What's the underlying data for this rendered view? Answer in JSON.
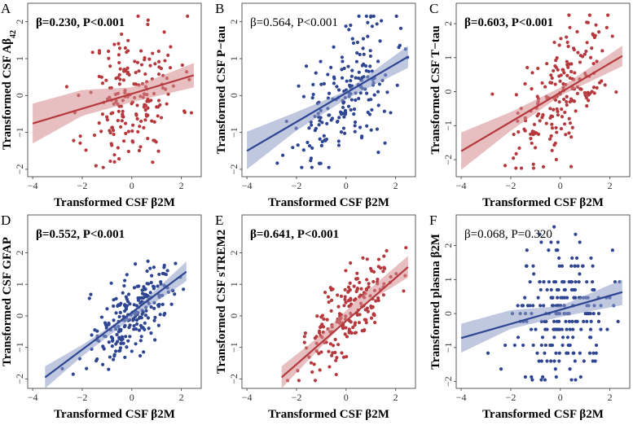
{
  "colors": {
    "red": "#B5393D",
    "blue": "#2E4592",
    "red_band": "#D48A8D",
    "blue_band": "#8D9BC7"
  },
  "chart_data": [
    {
      "panel": "A",
      "type": "scatter",
      "color": "red",
      "xlabel": "Transformed CSF β2M",
      "ylabel": "Transformed CSF Aβ",
      "ylabel_sub": "42",
      "annotation": "β=0.230, P<0.001",
      "annotation_bold": true,
      "xlim": [
        -4.2,
        2.8
      ],
      "ylim": [
        -2.2,
        2.5
      ],
      "xticks": [
        -4,
        -2,
        0,
        2
      ],
      "yticks": [
        -2,
        -1,
        0,
        1,
        2
      ],
      "xtick_labels": [
        "−4",
        "−2",
        "0",
        "2"
      ],
      "ytick_labels": [
        "−2",
        "−1",
        "0",
        "1",
        "2"
      ],
      "fit": {
        "x": [
          -4.0,
          2.5
        ],
        "y": [
          -0.76,
          0.55
        ]
      },
      "ci": {
        "x": [
          -4.0,
          -2.0,
          0.0,
          2.5
        ],
        "lower": [
          -1.3,
          -0.55,
          -0.18,
          0.22
        ],
        "upper": [
          -0.22,
          0.15,
          0.22,
          0.88
        ]
      },
      "point_seed": 11,
      "point_count": 200,
      "point_slope": 0.23,
      "point_sd": 0.95
    },
    {
      "panel": "B",
      "type": "scatter",
      "color": "blue",
      "xlabel": "Transformed CSF β2M",
      "ylabel": "Transformed CSF P−tau",
      "ylabel_sub": "",
      "annotation": "β=0.564, P<0.001",
      "annotation_bold": false,
      "xlim": [
        -4.2,
        2.8
      ],
      "ylim": [
        -2.2,
        2.5
      ],
      "xticks": [
        -4,
        -2,
        0,
        2
      ],
      "yticks": [
        -2,
        -1,
        0,
        1,
        2
      ],
      "xtick_labels": [
        "−4",
        "−2",
        "0",
        "2"
      ],
      "ytick_labels": [
        "−2",
        "−1",
        "0",
        "1",
        "2"
      ],
      "fit": {
        "x": [
          -4.0,
          2.5
        ],
        "y": [
          -1.5,
          1.05
        ]
      },
      "ci": {
        "x": [
          -4.0,
          -2.0,
          0.0,
          2.5
        ],
        "lower": [
          -2.0,
          -0.95,
          -0.1,
          0.75
        ],
        "upper": [
          -0.98,
          -0.45,
          0.12,
          1.35
        ]
      },
      "point_seed": 22,
      "point_count": 200,
      "point_slope": 0.56,
      "point_sd": 0.8
    },
    {
      "panel": "C",
      "type": "scatter",
      "color": "red",
      "xlabel": "Transformed CSF β2M",
      "ylabel": "Transformed CSF T−tau",
      "ylabel_sub": "",
      "annotation": "β=0.603, P<0.001",
      "annotation_bold": true,
      "xlim": [
        -4.2,
        2.8
      ],
      "ylim": [
        -2.5,
        2.6
      ],
      "xticks": [
        -4,
        -2,
        0,
        2
      ],
      "yticks": [
        -2,
        -1,
        0,
        1,
        2
      ],
      "xtick_labels": [
        "−4",
        "−2",
        "0",
        "2"
      ],
      "ytick_labels": [
        "−2",
        "−1",
        "0",
        "1",
        "2"
      ],
      "fit": {
        "x": [
          -4.0,
          2.5
        ],
        "y": [
          -1.75,
          1.05
        ]
      },
      "ci": {
        "x": [
          -4.0,
          -2.0,
          0.0,
          2.5
        ],
        "lower": [
          -2.3,
          -1.15,
          -0.12,
          0.75
        ],
        "upper": [
          -1.2,
          -0.6,
          0.12,
          1.35
        ]
      },
      "point_seed": 33,
      "point_count": 200,
      "point_slope": 0.6,
      "point_sd": 0.8
    },
    {
      "panel": "D",
      "type": "scatter",
      "color": "blue",
      "xlabel": "Transformed CSF β2M",
      "ylabel": "Transformed CSF GFAP",
      "ylabel_sub": "",
      "annotation": "β=0.552, P<0.001",
      "annotation_bold": true,
      "xlim": [
        -4.2,
        2.8
      ],
      "ylim": [
        -2.3,
        3.2
      ],
      "xticks": [
        -4,
        -2,
        0,
        2
      ],
      "yticks": [
        -2,
        -1,
        0,
        1,
        2
      ],
      "xtick_labels": [
        "−4",
        "−2",
        "0",
        "2"
      ],
      "ytick_labels": [
        "−2",
        "−1",
        "0",
        "1",
        "2"
      ],
      "fit": {
        "x": [
          -3.5,
          2.2
        ],
        "y": [
          -1.95,
          1.4
        ]
      },
      "ci": {
        "x": [
          -3.5,
          -2.0,
          0.0,
          2.2
        ],
        "lower": [
          -2.3,
          -1.28,
          -0.08,
          1.1
        ],
        "upper": [
          -1.6,
          -0.92,
          0.12,
          1.72
        ]
      },
      "point_seed": 44,
      "point_count": 230,
      "point_slope": 0.6,
      "point_sd": 0.65
    },
    {
      "panel": "E",
      "type": "scatter",
      "color": "red",
      "xlabel": "Transformed CSF β2M",
      "ylabel": "Transformed CSF sTREM2",
      "ylabel_sub": "",
      "annotation": "β=0.641, P<0.001",
      "annotation_bold": true,
      "xlim": [
        -4.2,
        2.8
      ],
      "ylim": [
        -2.3,
        3.2
      ],
      "xticks": [
        -4,
        -2,
        0,
        2
      ],
      "yticks": [
        -2,
        -1,
        0,
        1,
        2
      ],
      "xtick_labels": [
        "−4",
        "−2",
        "0",
        "2"
      ],
      "ytick_labels": [
        "−2",
        "−1",
        "0",
        "1",
        "2"
      ],
      "fit": {
        "x": [
          -2.6,
          2.5
        ],
        "y": [
          -1.95,
          1.55
        ]
      },
      "ci": {
        "x": [
          -2.6,
          -1.0,
          0.5,
          2.5
        ],
        "lower": [
          -2.3,
          -0.98,
          0.25,
          1.22
        ],
        "upper": [
          -1.6,
          -0.6,
          0.55,
          1.9
        ]
      },
      "point_seed": 55,
      "point_count": 200,
      "point_slope": 0.68,
      "point_sd": 0.6
    },
    {
      "panel": "F",
      "type": "scatter",
      "color": "blue",
      "xlabel": "Transformed CSF β2M",
      "ylabel": "Transformed plasma β2M",
      "ylabel_sub": "",
      "annotation": "β=0.068, P=0.320",
      "annotation_bold": false,
      "xlim": [
        -4.2,
        2.8
      ],
      "ylim": [
        -2.2,
        2.9
      ],
      "xticks": [
        -4,
        -2,
        0,
        2
      ],
      "yticks": [
        -2,
        -1,
        0,
        1,
        2
      ],
      "xtick_labels": [
        "−4",
        "−2",
        "0",
        "2"
      ],
      "ytick_labels": [
        "−2",
        "−1",
        "0",
        "1",
        "2"
      ],
      "fit": {
        "x": [
          -4.0,
          2.5
        ],
        "y": [
          -0.72,
          0.63
        ]
      },
      "ci": {
        "x": [
          -4.0,
          -2.0,
          0.0,
          2.5
        ],
        "lower": [
          -1.15,
          -0.45,
          -0.1,
          0.25
        ],
        "upper": [
          -0.3,
          0.1,
          0.22,
          1.0
        ]
      },
      "point_seed": 66,
      "point_count": 230,
      "point_slope": 0.1,
      "point_sd": 0.95,
      "point_y_step": 0.233
    }
  ]
}
